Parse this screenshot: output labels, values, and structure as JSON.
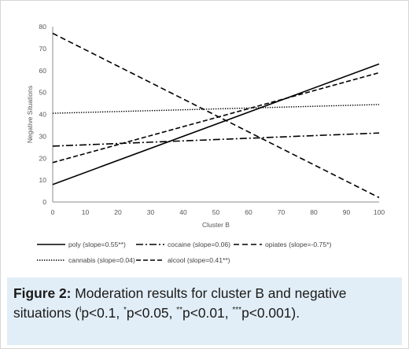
{
  "chart_data": {
    "type": "line",
    "xlabel": "Cluster B",
    "ylabel": "Negative Situations",
    "xlim": [
      0,
      100
    ],
    "ylim": [
      0,
      80
    ],
    "xticks": [
      "0",
      "10",
      "20",
      "30",
      "40",
      "50",
      "60",
      "70",
      "80",
      "90",
      "100"
    ],
    "yticks": [
      "0",
      "10",
      "20",
      "30",
      "40",
      "50",
      "60",
      "70",
      "80"
    ],
    "grid": false,
    "legend_position": "bottom",
    "series": [
      {
        "name": "poly (slope=0.55**)",
        "x": [
          0,
          100
        ],
        "values": [
          8,
          63
        ],
        "color": "#000000",
        "style": "solid"
      },
      {
        "name": "cocaine (slope=0.06)",
        "x": [
          0,
          100
        ],
        "values": [
          25.5,
          31.5
        ],
        "color": "#000000",
        "style": "dashdot"
      },
      {
        "name": "opiates (slope=-0.75*)",
        "x": [
          0,
          100
        ],
        "values": [
          77,
          2
        ],
        "color": "#000000",
        "style": "dash"
      },
      {
        "name": "cannabis (slope=0.04)",
        "x": [
          0,
          100
        ],
        "values": [
          40.5,
          44.5
        ],
        "color": "#000000",
        "style": "dot"
      },
      {
        "name": "alcool (slope=0.41**)",
        "x": [
          0,
          100
        ],
        "values": [
          18,
          59
        ],
        "color": "#000000",
        "style": "longdash"
      }
    ]
  },
  "caption": {
    "label": "Figure 2:",
    "text_1": " Moderation results for cluster B and negative situations (",
    "sym_1": "ƚ",
    "text_2": "p<0.1, ",
    "sym_2": "*",
    "text_3": "p<0.05, ",
    "sym_3": "**",
    "text_4": "p<0.01, ",
    "sym_4": "***",
    "text_5": "p<0.001)."
  },
  "colors": {
    "caption_bg": "#e2eef7",
    "axis": "#8c8c8c",
    "tick_text": "#555555"
  }
}
